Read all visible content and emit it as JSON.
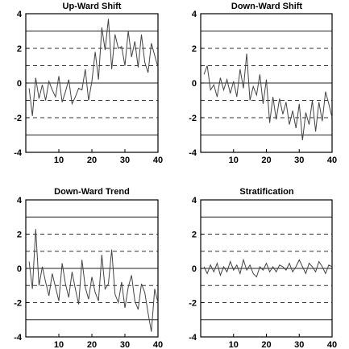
{
  "chart_data": [
    {
      "type": "line",
      "title": "Up-Ward Shift",
      "xlabel": "",
      "ylabel": "",
      "xlim": [
        0,
        40
      ],
      "ylim": [
        -4,
        4
      ],
      "xticks": [
        10,
        20,
        30,
        40
      ],
      "yticks": [
        -4,
        -2,
        0,
        2,
        4
      ],
      "solid_lines": [
        -3,
        0,
        3
      ],
      "dashed_lines": [
        -2,
        -1,
        1,
        2
      ],
      "series": [
        {
          "x": [
            1,
            2,
            3,
            4,
            5,
            6,
            7,
            8,
            9,
            10,
            11,
            12,
            13,
            14,
            15,
            16,
            17,
            18,
            19,
            20,
            21,
            22,
            23,
            24,
            25,
            26,
            27,
            28,
            29,
            30,
            31,
            32,
            33,
            34,
            35,
            36,
            37,
            38,
            39,
            40
          ],
          "values": [
            -0.3,
            -1.9,
            0.3,
            -0.9,
            -0.1,
            -1.0,
            0.1,
            -0.4,
            -0.8,
            0.4,
            -1.1,
            -0.5,
            0.2,
            -1.2,
            -0.8,
            -0.3,
            -0.4,
            0.8,
            -1.0,
            0.1,
            1.8,
            0.2,
            3.2,
            1.9,
            3.7,
            0.8,
            2.8,
            2.0,
            2.1,
            1.0,
            3.0,
            1.5,
            2.4,
            0.9,
            2.8,
            1.2,
            0.6,
            2.3,
            1.6,
            0.9
          ]
        }
      ]
    },
    {
      "type": "line",
      "title": "Down-Ward Shift",
      "xlabel": "",
      "ylabel": "",
      "xlim": [
        0,
        40
      ],
      "ylim": [
        -4,
        4
      ],
      "xticks": [
        10,
        20,
        30,
        40
      ],
      "yticks": [
        -4,
        -2,
        0,
        2,
        4
      ],
      "solid_lines": [
        -3,
        0,
        3
      ],
      "dashed_lines": [
        -2,
        -1,
        1,
        2
      ],
      "series": [
        {
          "x": [
            1,
            2,
            3,
            4,
            5,
            6,
            7,
            8,
            9,
            10,
            11,
            12,
            13,
            14,
            15,
            16,
            17,
            18,
            19,
            20,
            21,
            22,
            23,
            24,
            25,
            26,
            27,
            28,
            29,
            30,
            31,
            32,
            33,
            34,
            35,
            36,
            37,
            38,
            39,
            40
          ],
          "values": [
            0.5,
            1.0,
            -0.4,
            -0.1,
            -0.8,
            0.3,
            -0.4,
            0.2,
            -0.6,
            0.1,
            -0.8,
            0.8,
            -0.3,
            1.7,
            -1.0,
            -0.2,
            -0.7,
            0.5,
            -1.2,
            0.2,
            -2.3,
            -0.8,
            -2.1,
            -0.9,
            -1.8,
            -1.1,
            -2.4,
            -1.6,
            -2.6,
            -1.2,
            -3.3,
            -1.7,
            -2.4,
            -1.0,
            -2.8,
            -1.1,
            -2.2,
            -0.5,
            -1.2,
            -2.0
          ]
        }
      ]
    },
    {
      "type": "line",
      "title": "Down-Ward Trend",
      "xlabel": "",
      "ylabel": "",
      "xlim": [
        0,
        40
      ],
      "ylim": [
        -4,
        4
      ],
      "xticks": [
        10,
        20,
        30,
        40
      ],
      "yticks": [
        -4,
        -2,
        0,
        2,
        4
      ],
      "solid_lines": [
        -3,
        0,
        3
      ],
      "dashed_lines": [
        -2,
        -1,
        1,
        2
      ],
      "series": [
        {
          "x": [
            1,
            2,
            3,
            4,
            5,
            6,
            7,
            8,
            9,
            10,
            11,
            12,
            13,
            14,
            15,
            16,
            17,
            18,
            19,
            20,
            21,
            22,
            23,
            24,
            25,
            26,
            27,
            28,
            29,
            30,
            31,
            32,
            33,
            34,
            35,
            36,
            37,
            38,
            39,
            40
          ],
          "values": [
            0.4,
            -1.2,
            2.3,
            -1.0,
            0.1,
            -0.8,
            -1.6,
            -0.3,
            -1.1,
            -1.9,
            0.3,
            -0.9,
            -1.7,
            -0.2,
            -1.2,
            -2.1,
            0.5,
            -1.1,
            -1.8,
            -0.5,
            -1.4,
            -1.9,
            0.8,
            -1.2,
            -0.9,
            1.1,
            -1.5,
            -2.0,
            -0.8,
            -2.3,
            -1.1,
            -0.4,
            -1.9,
            -2.4,
            -0.9,
            -1.4,
            -2.6,
            -3.7,
            -1.2,
            -2.0
          ]
        }
      ]
    },
    {
      "type": "line",
      "title": "Stratification",
      "xlabel": "",
      "ylabel": "",
      "xlim": [
        0,
        40
      ],
      "ylim": [
        -4,
        4
      ],
      "xticks": [
        10,
        20,
        30,
        40
      ],
      "yticks": [
        -4,
        -2,
        0,
        2,
        4
      ],
      "solid_lines": [
        -3,
        0,
        3
      ],
      "dashed_lines": [
        -2,
        -1,
        1,
        2
      ],
      "series": [
        {
          "x": [
            1,
            2,
            3,
            4,
            5,
            6,
            7,
            8,
            9,
            10,
            11,
            12,
            13,
            14,
            15,
            16,
            17,
            18,
            19,
            20,
            21,
            22,
            23,
            24,
            25,
            26,
            27,
            28,
            29,
            30,
            31,
            32,
            33,
            34,
            35,
            36,
            37,
            38,
            39,
            40
          ],
          "values": [
            0.1,
            -0.3,
            0.2,
            -0.2,
            0.3,
            -0.4,
            0.1,
            -0.2,
            0.4,
            -0.1,
            0.2,
            -0.3,
            0.5,
            -0.1,
            0.2,
            -0.3,
            -0.5,
            0.1,
            -0.1,
            0.3,
            -0.2,
            0.1,
            -0.2,
            0.2,
            0.1,
            -0.1,
            0.3,
            -0.2,
            0.1,
            0.5,
            0.1,
            -0.3,
            0.3,
            0.1,
            -0.2,
            0.4,
            0.1,
            -0.3,
            0.2,
            0.1
          ]
        }
      ]
    }
  ]
}
